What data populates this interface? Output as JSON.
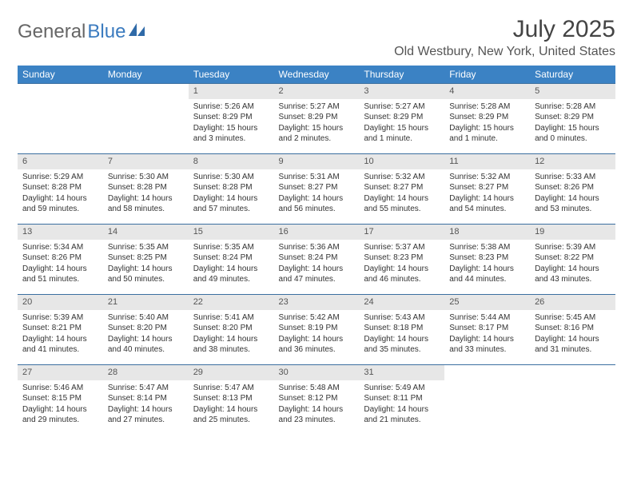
{
  "brand": {
    "general": "General",
    "blue": "Blue"
  },
  "title": "July 2025",
  "location": "Old Westbury, New York, United States",
  "header_bg": "#3b82c4",
  "border_color": "#3b6fa0",
  "daynum_bg": "#e7e7e7",
  "weekdays": [
    "Sunday",
    "Monday",
    "Tuesday",
    "Wednesday",
    "Thursday",
    "Friday",
    "Saturday"
  ],
  "weeks": [
    [
      null,
      null,
      {
        "n": "1",
        "sunrise": "5:26 AM",
        "sunset": "8:29 PM",
        "daylight": "15 hours and 3 minutes."
      },
      {
        "n": "2",
        "sunrise": "5:27 AM",
        "sunset": "8:29 PM",
        "daylight": "15 hours and 2 minutes."
      },
      {
        "n": "3",
        "sunrise": "5:27 AM",
        "sunset": "8:29 PM",
        "daylight": "15 hours and 1 minute."
      },
      {
        "n": "4",
        "sunrise": "5:28 AM",
        "sunset": "8:29 PM",
        "daylight": "15 hours and 1 minute."
      },
      {
        "n": "5",
        "sunrise": "5:28 AM",
        "sunset": "8:29 PM",
        "daylight": "15 hours and 0 minutes."
      }
    ],
    [
      {
        "n": "6",
        "sunrise": "5:29 AM",
        "sunset": "8:28 PM",
        "daylight": "14 hours and 59 minutes."
      },
      {
        "n": "7",
        "sunrise": "5:30 AM",
        "sunset": "8:28 PM",
        "daylight": "14 hours and 58 minutes."
      },
      {
        "n": "8",
        "sunrise": "5:30 AM",
        "sunset": "8:28 PM",
        "daylight": "14 hours and 57 minutes."
      },
      {
        "n": "9",
        "sunrise": "5:31 AM",
        "sunset": "8:27 PM",
        "daylight": "14 hours and 56 minutes."
      },
      {
        "n": "10",
        "sunrise": "5:32 AM",
        "sunset": "8:27 PM",
        "daylight": "14 hours and 55 minutes."
      },
      {
        "n": "11",
        "sunrise": "5:32 AM",
        "sunset": "8:27 PM",
        "daylight": "14 hours and 54 minutes."
      },
      {
        "n": "12",
        "sunrise": "5:33 AM",
        "sunset": "8:26 PM",
        "daylight": "14 hours and 53 minutes."
      }
    ],
    [
      {
        "n": "13",
        "sunrise": "5:34 AM",
        "sunset": "8:26 PM",
        "daylight": "14 hours and 51 minutes."
      },
      {
        "n": "14",
        "sunrise": "5:35 AM",
        "sunset": "8:25 PM",
        "daylight": "14 hours and 50 minutes."
      },
      {
        "n": "15",
        "sunrise": "5:35 AM",
        "sunset": "8:24 PM",
        "daylight": "14 hours and 49 minutes."
      },
      {
        "n": "16",
        "sunrise": "5:36 AM",
        "sunset": "8:24 PM",
        "daylight": "14 hours and 47 minutes."
      },
      {
        "n": "17",
        "sunrise": "5:37 AM",
        "sunset": "8:23 PM",
        "daylight": "14 hours and 46 minutes."
      },
      {
        "n": "18",
        "sunrise": "5:38 AM",
        "sunset": "8:23 PM",
        "daylight": "14 hours and 44 minutes."
      },
      {
        "n": "19",
        "sunrise": "5:39 AM",
        "sunset": "8:22 PM",
        "daylight": "14 hours and 43 minutes."
      }
    ],
    [
      {
        "n": "20",
        "sunrise": "5:39 AM",
        "sunset": "8:21 PM",
        "daylight": "14 hours and 41 minutes."
      },
      {
        "n": "21",
        "sunrise": "5:40 AM",
        "sunset": "8:20 PM",
        "daylight": "14 hours and 40 minutes."
      },
      {
        "n": "22",
        "sunrise": "5:41 AM",
        "sunset": "8:20 PM",
        "daylight": "14 hours and 38 minutes."
      },
      {
        "n": "23",
        "sunrise": "5:42 AM",
        "sunset": "8:19 PM",
        "daylight": "14 hours and 36 minutes."
      },
      {
        "n": "24",
        "sunrise": "5:43 AM",
        "sunset": "8:18 PM",
        "daylight": "14 hours and 35 minutes."
      },
      {
        "n": "25",
        "sunrise": "5:44 AM",
        "sunset": "8:17 PM",
        "daylight": "14 hours and 33 minutes."
      },
      {
        "n": "26",
        "sunrise": "5:45 AM",
        "sunset": "8:16 PM",
        "daylight": "14 hours and 31 minutes."
      }
    ],
    [
      {
        "n": "27",
        "sunrise": "5:46 AM",
        "sunset": "8:15 PM",
        "daylight": "14 hours and 29 minutes."
      },
      {
        "n": "28",
        "sunrise": "5:47 AM",
        "sunset": "8:14 PM",
        "daylight": "14 hours and 27 minutes."
      },
      {
        "n": "29",
        "sunrise": "5:47 AM",
        "sunset": "8:13 PM",
        "daylight": "14 hours and 25 minutes."
      },
      {
        "n": "30",
        "sunrise": "5:48 AM",
        "sunset": "8:12 PM",
        "daylight": "14 hours and 23 minutes."
      },
      {
        "n": "31",
        "sunrise": "5:49 AM",
        "sunset": "8:11 PM",
        "daylight": "14 hours and 21 minutes."
      },
      null,
      null
    ]
  ]
}
